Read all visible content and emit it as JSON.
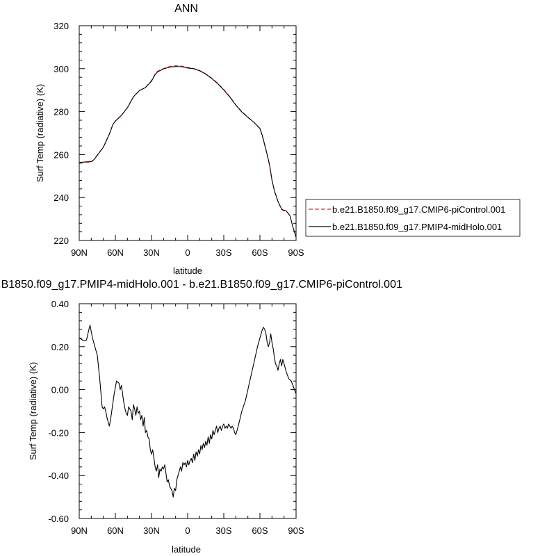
{
  "chart_data": [
    {
      "type": "line",
      "title": "ANN",
      "xlabel": "latitude",
      "ylabel": "Surf Temp (radiative) (K)",
      "xlim": [
        90,
        -90
      ],
      "ylim": [
        220,
        320
      ],
      "x_ticks": [
        90,
        60,
        30,
        0,
        -30,
        -60,
        -90
      ],
      "x_tick_labels": [
        "90N",
        "60N",
        "30N",
        "0",
        "30S",
        "60S",
        "90S"
      ],
      "y_ticks": [
        220,
        240,
        260,
        280,
        300,
        320
      ],
      "y_tick_labels": [
        "220",
        "240",
        "260",
        "280",
        "300",
        "320"
      ],
      "grid": false,
      "legend_position": "right",
      "series": [
        {
          "name": "b.e21.B1850.f09_g17.CMIP6-piControl.001",
          "color": "#d62728",
          "dash": "dashed",
          "x": [
            90,
            85,
            80,
            78,
            75,
            70,
            65,
            62,
            60,
            55,
            50,
            45,
            40,
            35,
            30,
            27,
            25,
            20,
            15,
            10,
            5,
            0,
            -5,
            -10,
            -15,
            -20,
            -25,
            -30,
            -35,
            -40,
            -45,
            -50,
            -55,
            -60,
            -62,
            -65,
            -68,
            -70,
            -72,
            -75,
            -78,
            -80,
            -82,
            -85,
            -87,
            -90
          ],
          "y": [
            256.1,
            256.4,
            256.5,
            257.5,
            259.8,
            263.5,
            269.5,
            274.0,
            275.5,
            278.2,
            281.8,
            287.0,
            289.8,
            291.3,
            294.5,
            297.5,
            298.8,
            300.1,
            301.0,
            301.4,
            301.2,
            300.6,
            300.1,
            299.2,
            297.6,
            295.6,
            293.2,
            290.3,
            287.0,
            283.2,
            280.0,
            277.5,
            275.0,
            272.0,
            268.5,
            262.0,
            255.0,
            248.0,
            243.0,
            238.0,
            234.4,
            233.8,
            233.6,
            231.5,
            227.0,
            221.5
          ]
        },
        {
          "name": "b.e21.B1850.f09_g17.PMIP4-midHolo.001",
          "color": "#000000",
          "dash": "solid",
          "x": [
            90,
            85,
            80,
            78,
            75,
            70,
            65,
            62,
            60,
            55,
            50,
            45,
            40,
            35,
            30,
            27,
            25,
            20,
            15,
            10,
            5,
            0,
            -5,
            -10,
            -15,
            -20,
            -25,
            -30,
            -35,
            -40,
            -45,
            -50,
            -55,
            -60,
            -62,
            -65,
            -68,
            -70,
            -72,
            -75,
            -78,
            -80,
            -82,
            -85,
            -87,
            -90
          ],
          "y": [
            256.3,
            256.6,
            256.7,
            257.5,
            259.6,
            263.4,
            269.5,
            274.1,
            275.6,
            278.3,
            281.8,
            286.9,
            289.8,
            291.2,
            294.2,
            297.2,
            298.5,
            299.9,
            300.7,
            301.0,
            300.9,
            300.3,
            300.0,
            299.0,
            297.5,
            295.4,
            293.0,
            290.1,
            286.8,
            283.0,
            279.8,
            277.3,
            275.0,
            272.2,
            268.8,
            262.3,
            255.2,
            248.2,
            243.2,
            238.2,
            234.6,
            234.0,
            233.7,
            231.5,
            227.0,
            221.5
          ]
        }
      ]
    },
    {
      "type": "line",
      "title": "b.e21.B1850.f09_g17.PMIP4-midHolo.001 - b.e21.B1850.f09_g17.CMIP6-piControl.001",
      "xlabel": "latitude",
      "ylabel": "Surf Temp (radiative) (K)",
      "xlim": [
        90,
        -90
      ],
      "ylim": [
        -0.6,
        0.4
      ],
      "x_ticks": [
        90,
        60,
        30,
        0,
        -30,
        -60,
        -90
      ],
      "x_tick_labels": [
        "90N",
        "60N",
        "30N",
        "0",
        "30S",
        "60S",
        "90S"
      ],
      "y_ticks": [
        -0.6,
        -0.4,
        -0.2,
        0.0,
        0.2,
        0.4
      ],
      "y_tick_labels": [
        "-0.60",
        "-0.40",
        "-0.20",
        "0.00",
        "0.20",
        "0.40"
      ],
      "grid": false,
      "series": [
        {
          "color": "#000000",
          "dash": "solid",
          "x": [
            90,
            87,
            84,
            82,
            81,
            80,
            79,
            77,
            75,
            73,
            71,
            70,
            69,
            68,
            67,
            66,
            65,
            64,
            63,
            61,
            59,
            57,
            56,
            55,
            54,
            53,
            52,
            51,
            50,
            49,
            48,
            47,
            46,
            45,
            44,
            43,
            42,
            41,
            40,
            39,
            38,
            37,
            36,
            35,
            34,
            33,
            32,
            31,
            30,
            29,
            28,
            27,
            26,
            25,
            24,
            23,
            22,
            21,
            20,
            19,
            18,
            17,
            16,
            15,
            14,
            13,
            12,
            11,
            10,
            9,
            8,
            7,
            6,
            5,
            4,
            3,
            2,
            1,
            0,
            -1,
            -2,
            -3,
            -4,
            -5,
            -6,
            -7,
            -8,
            -9,
            -10,
            -11,
            -12,
            -13,
            -14,
            -15,
            -16,
            -17,
            -18,
            -19,
            -20,
            -21,
            -22,
            -23,
            -24,
            -25,
            -26,
            -27,
            -28,
            -29,
            -30,
            -31,
            -32,
            -33,
            -34,
            -35,
            -36,
            -37,
            -38,
            -39,
            -40,
            -42,
            -45,
            -48,
            -50,
            -52,
            -54,
            -56,
            -58,
            -60,
            -61,
            -62,
            -63,
            -64,
            -65,
            -66,
            -67,
            -68,
            -69,
            -70,
            -71,
            -72,
            -73,
            -74,
            -75,
            -76,
            -77,
            -78,
            -79,
            -80,
            -82,
            -84,
            -86,
            -88,
            -90
          ],
          "y": [
            0.24,
            0.23,
            0.23,
            0.28,
            0.3,
            0.27,
            0.24,
            0.2,
            0.16,
            0.05,
            -0.08,
            -0.09,
            -0.08,
            -0.1,
            -0.13,
            -0.15,
            -0.17,
            -0.14,
            -0.1,
            -0.02,
            0.04,
            0.03,
            0.0,
            0.02,
            -0.02,
            -0.06,
            -0.09,
            -0.11,
            -0.12,
            -0.08,
            -0.09,
            -0.1,
            -0.14,
            -0.07,
            -0.09,
            -0.12,
            -0.08,
            -0.11,
            -0.1,
            -0.14,
            -0.12,
            -0.17,
            -0.13,
            -0.2,
            -0.19,
            -0.22,
            -0.23,
            -0.28,
            -0.3,
            -0.28,
            -0.32,
            -0.36,
            -0.38,
            -0.35,
            -0.41,
            -0.37,
            -0.38,
            -0.36,
            -0.37,
            -0.35,
            -0.39,
            -0.43,
            -0.42,
            -0.45,
            -0.46,
            -0.47,
            -0.5,
            -0.46,
            -0.47,
            -0.42,
            -0.4,
            -0.38,
            -0.36,
            -0.38,
            -0.34,
            -0.35,
            -0.34,
            -0.36,
            -0.33,
            -0.35,
            -0.33,
            -0.32,
            -0.34,
            -0.3,
            -0.33,
            -0.29,
            -0.31,
            -0.28,
            -0.3,
            -0.26,
            -0.28,
            -0.25,
            -0.27,
            -0.24,
            -0.26,
            -0.22,
            -0.25,
            -0.21,
            -0.23,
            -0.19,
            -0.21,
            -0.19,
            -0.17,
            -0.2,
            -0.18,
            -0.17,
            -0.19,
            -0.17,
            -0.16,
            -0.18,
            -0.17,
            -0.18,
            -0.16,
            -0.17,
            -0.18,
            -0.17,
            -0.18,
            -0.2,
            -0.21,
            -0.17,
            -0.1,
            -0.05,
            0.0,
            0.05,
            0.1,
            0.15,
            0.2,
            0.24,
            0.26,
            0.28,
            0.29,
            0.28,
            0.26,
            0.22,
            0.2,
            0.22,
            0.26,
            0.22,
            0.19,
            0.15,
            0.12,
            0.11,
            0.09,
            0.12,
            0.14,
            0.11,
            0.14,
            0.12,
            0.08,
            0.05,
            0.04,
            0.01,
            -0.02
          ]
        }
      ]
    }
  ]
}
